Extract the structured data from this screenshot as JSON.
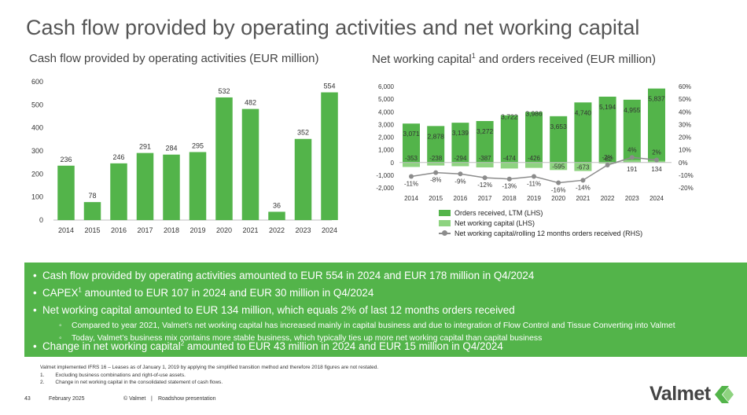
{
  "title": "Cash flow provided by operating activities and net working capital",
  "left_chart_title": "Cash flow provided by operating activities (EUR million)",
  "right_chart_title_prefix": "Net working capital",
  "right_chart_title_sup": "1",
  "right_chart_title_suffix": " and orders received (EUR million)",
  "colors": {
    "dark_green": "#53b44a",
    "light_green": "#8ed380",
    "line_gray": "#8c8c8c",
    "panel_green": "#53b44a"
  },
  "chart_data": [
    {
      "type": "bar",
      "title": "Cash flow provided by operating activities (EUR million)",
      "categories": [
        "2014",
        "2015",
        "2016",
        "2017",
        "2018",
        "2019",
        "2020",
        "2021",
        "2022",
        "2023",
        "2024"
      ],
      "values": [
        236,
        78,
        246,
        291,
        284,
        295,
        532,
        482,
        36,
        352,
        554
      ],
      "ylim": [
        0,
        600
      ],
      "yticks": [
        "0",
        "100",
        "200",
        "300",
        "400",
        "500",
        "600"
      ],
      "grid": false
    },
    {
      "type": "bar",
      "title": "Net working capital and orders received (EUR million)",
      "categories": [
        "2014",
        "2015",
        "2016",
        "2017",
        "2018",
        "2019",
        "2020",
        "2021",
        "2022",
        "2023",
        "2024"
      ],
      "series": [
        {
          "name": "Orders received, LTM (LHS)",
          "type": "bar",
          "values": [
            3071,
            2878,
            3139,
            3272,
            3722,
            3986,
            3653,
            4740,
            5194,
            4955,
            5837
          ],
          "labels": [
            "3,071",
            "2,878",
            "3,139",
            "3,272",
            "3,722",
            "3,986",
            "3,653",
            "4,740",
            "5,194",
            "4,955",
            "5,837"
          ]
        },
        {
          "name": "Net working capital (LHS)",
          "type": "bar",
          "values": [
            -353,
            -238,
            -294,
            -387,
            -474,
            -426,
            -595,
            -673,
            -82,
            191,
            134
          ],
          "labels": [
            "-353",
            "-238",
            "-294",
            "-387",
            "-474",
            "-426",
            "-595",
            "-673",
            "-82",
            "191",
            "134"
          ]
        },
        {
          "name": "Net working capital/rolling 12 months orders received (RHS)",
          "type": "line",
          "values": [
            -11,
            -8,
            -9,
            -12,
            -13,
            -11,
            -16,
            -14,
            -2,
            4,
            2
          ],
          "labels": [
            "-11%",
            "-8%",
            "-9%",
            "-12%",
            "-13%",
            "-11%",
            "-16%",
            "-14%",
            "-2%",
            "4%",
            "2%"
          ]
        }
      ],
      "ylim_left": [
        -2000,
        6000
      ],
      "yticks_left": [
        "-2,000",
        "-1,000",
        "0",
        "1,000",
        "2,000",
        "3,000",
        "4,000",
        "5,000",
        "6,000"
      ],
      "ylim_right": [
        -20,
        60
      ],
      "yticks_right": [
        "-20%",
        "-10%",
        "0%",
        "10%",
        "20%",
        "30%",
        "40%",
        "50%",
        "60%"
      ],
      "legend_position": "bottom"
    }
  ],
  "legend": [
    {
      "label": "Orders received, LTM (LHS)"
    },
    {
      "label": "Net working capital (LHS)"
    },
    {
      "label": "Net working capital/rolling 12 months orders received (RHS)"
    }
  ],
  "bullets": {
    "b1": "Cash flow provided by operating activities amounted to EUR 554 in 2024 and EUR 178 million in Q4/2024",
    "b2_pre": "CAPEX",
    "b2_sup": "1",
    "b2_post": " amounted to EUR 107 in 2024 and EUR 30 million in Q4/2024",
    "b3": "Net working capital amounted to EUR 134 million, which equals 2% of last 12 months orders received",
    "b3_sub1": "Compared to year 2021, Valmet’s net working capital has increased mainly in capital business and due to integration of Flow Control and Tissue Converting into Valmet",
    "b3_sub2": "Today, Valmet’s business mix contains more stable business, which typically ties up more net working capital than capital business",
    "b4_pre": "Change in net working capital",
    "b4_sup": "2",
    "b4_post": " amounted to EUR 43 million in 2024 and EUR 15 million in Q4/2024"
  },
  "footnotes": {
    "line0": "Valmet implemented IFRS 16 – Leases as of January 1, 2019 by applying the simplified transition method and therefore 2018 figures are not restated.",
    "n1": "1.",
    "line1": "Excluding business combinations and right-of-use assets.",
    "n2": "2.",
    "line2": "Change in net working capital in the consolidated statement of cash flows."
  },
  "footer": {
    "page": "43",
    "date": "February 2025",
    "copyright": "© Valmet",
    "separator": "|",
    "presentation": "Roadshow presentation"
  },
  "logo_text": "Valmet"
}
